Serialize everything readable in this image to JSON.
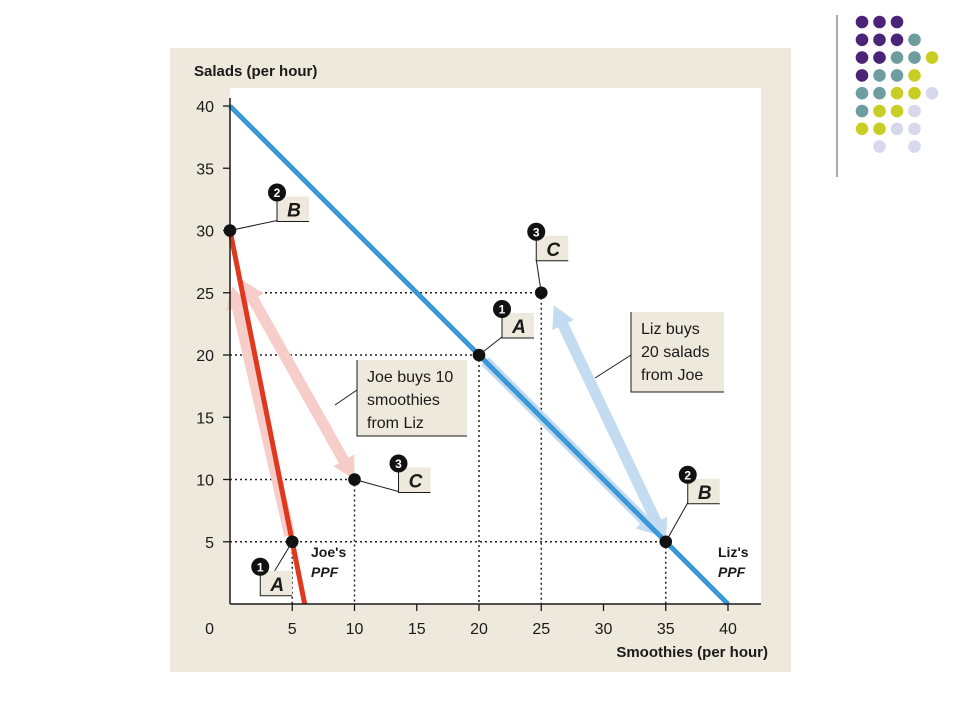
{
  "colors": {
    "panel_bg": "#ede9dc",
    "plot_bg": "#ffffff",
    "label_box_bg": "#ede9dc",
    "joe_ppf": "#e0381f",
    "liz_ppf": "#3b98d6",
    "joe_trade_arrow": "#f7cdc9",
    "liz_trade_arrow": "#c4dcf2",
    "point": "#111111",
    "deco_purple": "#4b2377",
    "deco_teal": "#6e9da0",
    "deco_yellow": "#c9ce25",
    "deco_lavender": "#d8d8ec"
  },
  "chart_data": {
    "type": "line",
    "xlabel": "Smoothies (per hour)",
    "ylabel": "Salads (per hour)",
    "xlim": [
      0,
      42
    ],
    "ylim": [
      0,
      42
    ],
    "origin_label": "0",
    "xticks": [
      5,
      10,
      15,
      20,
      25,
      30,
      35,
      40
    ],
    "yticks": [
      5,
      10,
      15,
      20,
      25,
      30,
      35,
      40
    ],
    "series": [
      {
        "id": "joe",
        "name": "Joe's PPF",
        "name_line1": "Joe's",
        "name_line2": "PPF",
        "color": "#e0381f",
        "x": [
          0,
          6
        ],
        "y": [
          30,
          0
        ]
      },
      {
        "id": "liz",
        "name": "Liz's PPF",
        "name_line1": "Liz's",
        "name_line2": "PPF",
        "color": "#3b98d6",
        "x": [
          0,
          40
        ],
        "y": [
          40,
          0
        ]
      }
    ],
    "points": [
      {
        "id": "joe-a",
        "owner": "joe",
        "label": "A",
        "number": "1",
        "x": 5,
        "y": 5
      },
      {
        "id": "joe-b",
        "owner": "joe",
        "label": "B",
        "number": "2",
        "x": 0,
        "y": 30
      },
      {
        "id": "joe-c",
        "owner": "joe",
        "label": "C",
        "number": "3",
        "x": 10,
        "y": 10
      },
      {
        "id": "liz-a",
        "owner": "liz",
        "label": "A",
        "number": "1",
        "x": 20,
        "y": 20
      },
      {
        "id": "liz-b",
        "owner": "liz",
        "label": "B",
        "number": "2",
        "x": 35,
        "y": 5
      },
      {
        "id": "liz-c",
        "owner": "liz",
        "label": "C",
        "number": "3",
        "x": 25,
        "y": 25
      }
    ],
    "guides": [
      {
        "x": 5,
        "y": 5
      },
      {
        "x": 10,
        "y": 10
      },
      {
        "x": 20,
        "y": 20
      },
      {
        "x": 25,
        "y": 25
      },
      {
        "x": 35,
        "y": 5
      }
    ],
    "trade_arrows": [
      {
        "id": "joe-trade",
        "owner": "joe",
        "from": [
          1,
          26
        ],
        "to": [
          10,
          10
        ],
        "color": "#f7cdc9"
      },
      {
        "id": "liz-trade",
        "owner": "liz",
        "from": [
          26,
          24
        ],
        "to": [
          35,
          5
        ],
        "color": "#c4dcf2"
      }
    ],
    "production_arrows": [
      {
        "id": "joe-production",
        "from": [
          4.8,
          5.5
        ],
        "to": [
          0.2,
          25.5
        ],
        "color": "#f7cdc9"
      },
      {
        "id": "liz-production",
        "from": [
          20.5,
          19.5
        ],
        "to": [
          34.5,
          5.5
        ],
        "color": "#c4dcf2"
      }
    ],
    "annotations": [
      {
        "id": "joe-trade-note",
        "lines": [
          "Joe buys 10",
          "smoothies",
          "from Liz"
        ]
      },
      {
        "id": "liz-trade-note",
        "lines": [
          "Liz buys",
          "20 salads",
          "from Joe"
        ]
      }
    ]
  }
}
